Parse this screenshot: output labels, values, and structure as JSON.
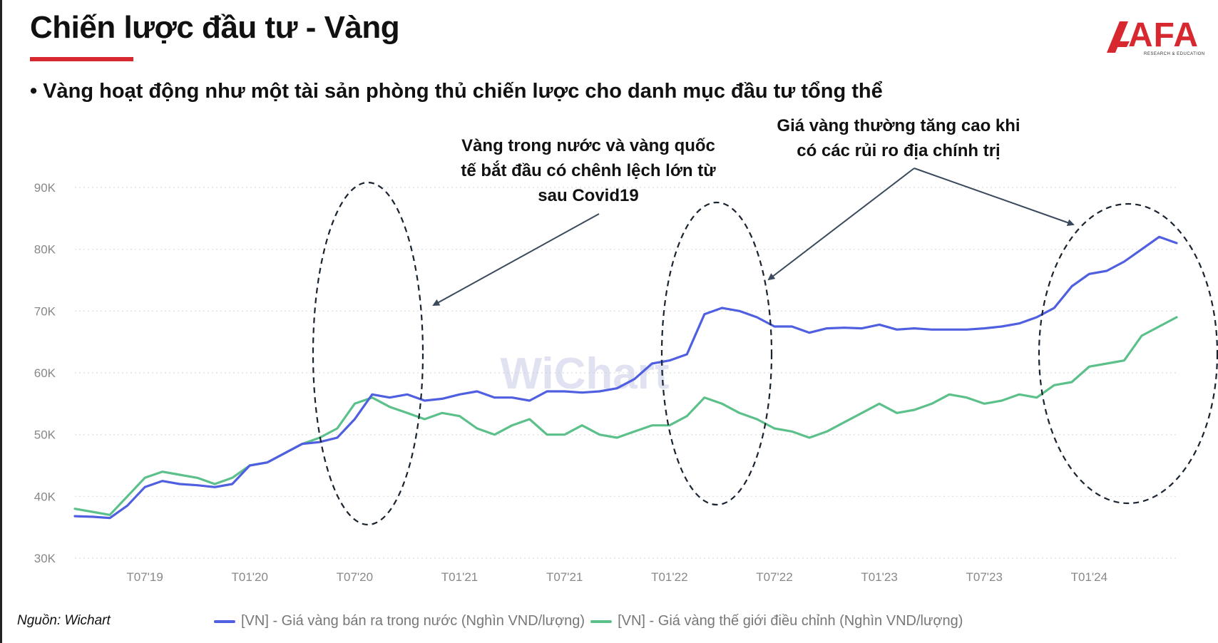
{
  "header": {
    "title": "Chiến lược đầu tư - Vàng",
    "bullet": "•  Vàng hoạt động như một tài sản phòng thủ chiến lược cho danh mục đầu tư tổng thể"
  },
  "logo": {
    "text": "AFA",
    "sub": "RESEARCH & EDUCATION"
  },
  "annotations": {
    "note1": "Vàng trong nước và vàng quốc\ntế bắt đầu có chênh lệch lớn từ\nsau Covid19",
    "note2": "Giá vàng thường tăng cao khi\ncó các rủi ro địa chính trị"
  },
  "watermark": "WiChart",
  "source": "Nguồn: Wichart",
  "colors": {
    "accent": "#d7282f",
    "domestic": "#4f5fe0",
    "world": "#5cc08a",
    "arrow": "#3a4a5c"
  },
  "chart_data": {
    "type": "line",
    "title": "",
    "xlabel": "",
    "ylabel": "",
    "ylim": [
      30000,
      90000
    ],
    "yticks": [
      "30K",
      "40K",
      "50K",
      "60K",
      "70K",
      "80K",
      "90K"
    ],
    "xticks": [
      "T07'19",
      "T01'20",
      "T07'20",
      "T01'21",
      "T07'21",
      "T01'22",
      "T07'22",
      "T01'23",
      "T07'23",
      "T01'24"
    ],
    "xlim": [
      "2019-03",
      "2024-06"
    ],
    "grid": true,
    "legend_position": "bottom",
    "x": [
      "2019-03",
      "2019-04",
      "2019-05",
      "2019-06",
      "2019-07",
      "2019-08",
      "2019-09",
      "2019-10",
      "2019-11",
      "2019-12",
      "2020-01",
      "2020-02",
      "2020-03",
      "2020-04",
      "2020-05",
      "2020-06",
      "2020-07",
      "2020-08",
      "2020-09",
      "2020-10",
      "2020-11",
      "2020-12",
      "2021-01",
      "2021-02",
      "2021-03",
      "2021-04",
      "2021-05",
      "2021-06",
      "2021-07",
      "2021-08",
      "2021-09",
      "2021-10",
      "2021-11",
      "2021-12",
      "2022-01",
      "2022-02",
      "2022-03",
      "2022-04",
      "2022-05",
      "2022-06",
      "2022-07",
      "2022-08",
      "2022-09",
      "2022-10",
      "2022-11",
      "2022-12",
      "2023-01",
      "2023-02",
      "2023-03",
      "2023-04",
      "2023-05",
      "2023-06",
      "2023-07",
      "2023-08",
      "2023-09",
      "2023-10",
      "2023-11",
      "2023-12",
      "2024-01",
      "2024-02",
      "2024-03",
      "2024-04",
      "2024-05",
      "2024-06"
    ],
    "series": [
      {
        "name": "[VN] - Giá vàng bán ra trong nước (Nghìn VND/lượng)",
        "color": "#4f5fe0",
        "values": [
          36800,
          36700,
          36500,
          38500,
          41500,
          42500,
          42000,
          41800,
          41500,
          42000,
          45000,
          45500,
          47000,
          48500,
          48800,
          49500,
          52500,
          56500,
          56000,
          56500,
          55500,
          55800,
          56500,
          57000,
          56000,
          56000,
          55500,
          57000,
          57000,
          56800,
          57000,
          57500,
          59000,
          61500,
          62000,
          63000,
          69500,
          70500,
          70000,
          69000,
          67500,
          67500,
          66500,
          67200,
          67300,
          67200,
          67800,
          67000,
          67200,
          67000,
          67000,
          67000,
          67200,
          67500,
          68000,
          69000,
          70500,
          74000,
          76000,
          76500,
          78000,
          80000,
          82000,
          81000
        ]
      },
      {
        "name": "[VN] - Giá vàng thế giới điều chỉnh (Nghìn VND/lượng)",
        "color": "#5cc08a",
        "values": [
          38000,
          37500,
          37000,
          40000,
          43000,
          44000,
          43500,
          43000,
          42000,
          43000,
          45000,
          45500,
          47000,
          48500,
          49500,
          51000,
          55000,
          56000,
          54500,
          53500,
          52500,
          53500,
          53000,
          51000,
          50000,
          51500,
          52500,
          50000,
          50000,
          51500,
          50000,
          49500,
          50500,
          51500,
          51500,
          53000,
          56000,
          55000,
          53500,
          52500,
          51000,
          50500,
          49500,
          50500,
          52000,
          53500,
          55000,
          53500,
          54000,
          55000,
          56500,
          56000,
          55000,
          55500,
          56500,
          56000,
          58000,
          58500,
          61000,
          61500,
          62000,
          66000,
          67500,
          69000
        ]
      }
    ]
  },
  "legend": {
    "domestic": "[VN] - Giá vàng bán ra trong nước (Nghìn VND/lượng)",
    "world": "[VN] - Giá vàng thế giới điều chỉnh (Nghìn VND/lượng)"
  }
}
